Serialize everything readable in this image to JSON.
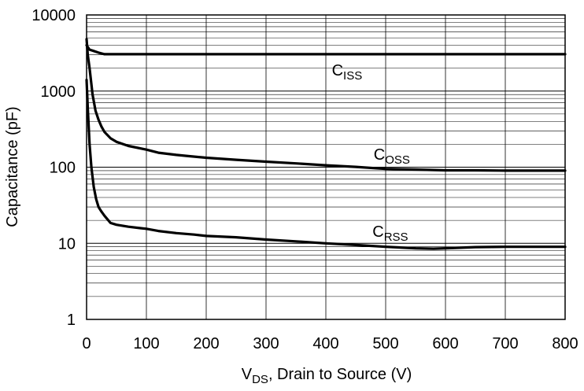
{
  "chart_data": {
    "type": "line",
    "xlabel": {
      "main": "V",
      "sub": "DS",
      "rest": ", Drain to Source (V)"
    },
    "ylabel": "Capacitance (pF)",
    "xlim": [
      0,
      800
    ],
    "ylim": [
      1,
      10000
    ],
    "yscale": "log",
    "grid": true,
    "x_ticks": [
      "0",
      "100",
      "200",
      "300",
      "400",
      "500",
      "600",
      "700",
      "800"
    ],
    "y_ticks": [
      "1",
      "10",
      "100",
      "1000",
      "10000"
    ],
    "series": [
      {
        "name": "C_ISS",
        "label_main": "C",
        "label_sub": "ISS",
        "label_at": [
          410,
          1600
        ],
        "x": [
          0,
          5,
          10,
          20,
          30,
          50,
          100,
          200,
          300,
          400,
          500,
          600,
          700,
          800
        ],
        "y": [
          4000,
          3500,
          3400,
          3200,
          3050,
          3050,
          3050,
          3050,
          3050,
          3050,
          3050,
          3050,
          3050,
          3050
        ]
      },
      {
        "name": "C_OSS",
        "label_main": "C",
        "label_sub": "OSS",
        "label_at": [
          480,
          125
        ],
        "x": [
          0,
          2,
          5,
          10,
          15,
          20,
          25,
          30,
          40,
          50,
          70,
          100,
          120,
          150,
          170,
          200,
          250,
          300,
          350,
          400,
          450,
          500,
          550,
          600,
          650,
          700,
          800
        ],
        "y": [
          4800,
          3000,
          2000,
          900,
          550,
          420,
          340,
          290,
          240,
          215,
          190,
          170,
          155,
          145,
          140,
          133,
          125,
          118,
          112,
          106,
          101,
          95,
          93,
          91,
          91,
          90,
          90
        ]
      },
      {
        "name": "C_RSS",
        "label_main": "C",
        "label_sub": "RSS",
        "label_at": [
          478,
          12.2
        ],
        "x": [
          0,
          2,
          5,
          8,
          12,
          16,
          20,
          25,
          30,
          40,
          50,
          70,
          90,
          100,
          120,
          150,
          180,
          200,
          250,
          300,
          350,
          400,
          450,
          500,
          550,
          580,
          600,
          650,
          700,
          800
        ],
        "y": [
          1400,
          600,
          200,
          100,
          55,
          38,
          30,
          26,
          23,
          18.5,
          17.5,
          16.5,
          15.8,
          15.5,
          14.5,
          13.6,
          13,
          12.5,
          12,
          11.2,
          10.6,
          10,
          9.5,
          9,
          8.6,
          8.5,
          8.6,
          8.9,
          9,
          9
        ]
      }
    ]
  }
}
